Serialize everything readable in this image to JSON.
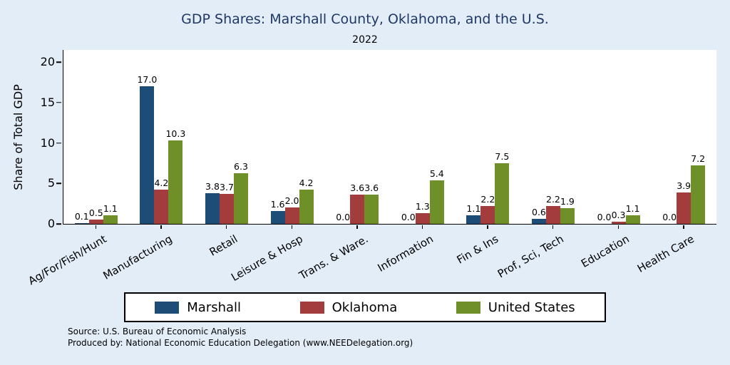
{
  "chart_data": {
    "type": "bar",
    "title": "GDP Shares: Marshall County, Oklahoma, and the U.S.",
    "subtitle": "2022",
    "ylabel": "Share of Total GDP",
    "xlabel": "",
    "ylim": [
      0,
      21.5
    ],
    "yticks": [
      0,
      5,
      10,
      15,
      20
    ],
    "grid": false,
    "legend_position": "bottom",
    "categories": [
      "Ag/For/Fish/Hunt",
      "Manufacturing",
      "Retail",
      "Leisure & Hosp",
      "Trans. & Ware.",
      "Information",
      "Fin & Ins",
      "Prof, Sci, Tech",
      "Education",
      "Health Care"
    ],
    "series": [
      {
        "name": "Marshall",
        "color": "#1d4c77",
        "values": [
          0.1,
          17.0,
          3.8,
          1.6,
          0.0,
          0.0,
          1.1,
          0.6,
          0.0,
          0.0
        ]
      },
      {
        "name": "Oklahoma",
        "color": "#a33c3c",
        "values": [
          0.5,
          4.2,
          3.7,
          2.0,
          3.6,
          1.3,
          2.2,
          2.2,
          0.3,
          3.9
        ]
      },
      {
        "name": "United States",
        "color": "#6f8f28",
        "values": [
          1.1,
          10.3,
          6.3,
          4.2,
          3.6,
          5.4,
          7.5,
          1.9,
          1.1,
          7.2
        ]
      }
    ]
  },
  "source": {
    "line1": "Source: U.S. Bureau of Economic Analysis",
    "line2": "Produced by: National Economic Education Delegation (www.NEEDelegation.org)"
  },
  "colors": {
    "background": "#e3edf8",
    "title": "#1f3864",
    "plot_background": "#ffffff"
  }
}
